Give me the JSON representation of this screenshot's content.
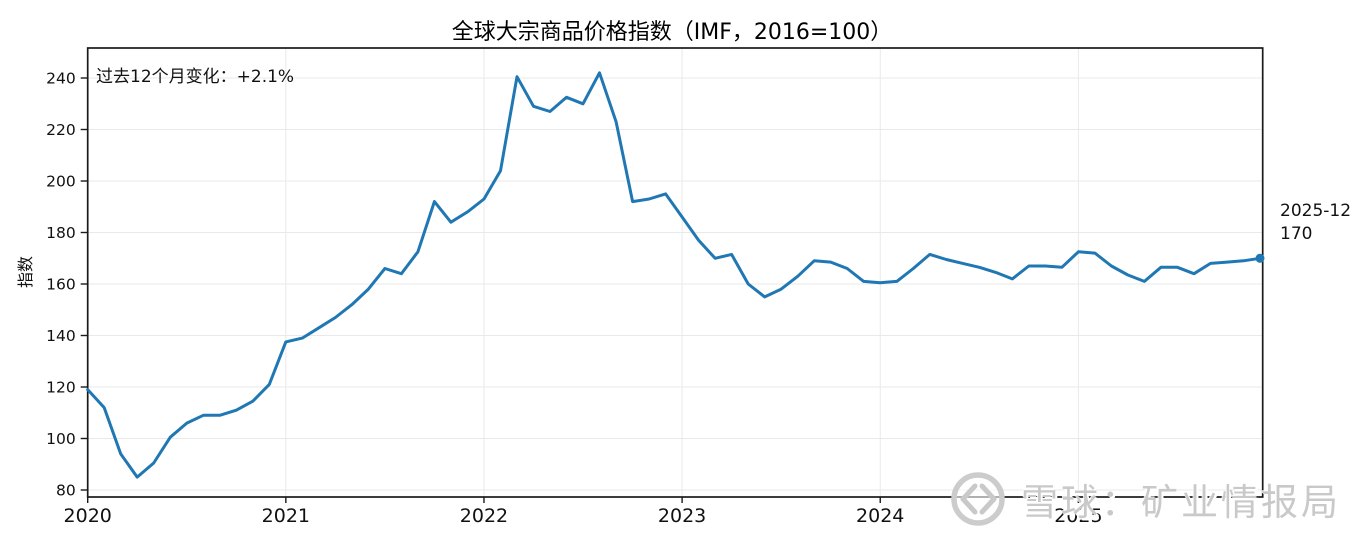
{
  "title": "全球大宗商品价格指数（IMF，2016=100）",
  "annotation": "过去12个月变化：+2.1%",
  "end_label": {
    "date": "2025-12",
    "value": "170"
  },
  "watermark": {
    "text": "雪球：矿业情报局",
    "logo": "xueqiu-circle-logo",
    "color": "#c9c9c9"
  },
  "chart_data": {
    "type": "line",
    "title": "全球大宗商品价格指数（IMF，2016=100）",
    "xlabel": "",
    "ylabel": "指数",
    "x_tick_labels": [
      "2020",
      "2021",
      "2022",
      "2023",
      "2024",
      "2025"
    ],
    "y_ticks": [
      80,
      100,
      120,
      140,
      160,
      180,
      200,
      220,
      240
    ],
    "ylim": [
      77,
      252
    ],
    "grid": true,
    "legend": "none",
    "line_color": "#1f77b4",
    "x_monthly_start": "2020-01",
    "x_monthly_end": "2025-12",
    "series": [
      {
        "name": "全球大宗商品价格指数",
        "values": [
          119,
          112,
          94,
          85,
          90.5,
          100.5,
          106,
          109,
          109,
          111,
          114.5,
          121,
          137.5,
          139,
          143,
          147,
          152,
          158,
          166,
          164,
          172.5,
          192,
          184,
          188,
          193,
          204,
          240.5,
          229,
          227,
          232.5,
          230,
          242,
          223,
          192,
          193,
          195,
          186,
          177,
          170,
          171.5,
          160,
          155,
          158,
          163,
          169,
          168.5,
          166,
          161,
          160.5,
          161,
          166,
          171.5,
          169.5,
          168,
          166.5,
          164.5,
          162,
          167,
          167,
          166.5,
          172.5,
          172,
          167,
          163.5,
          161,
          166.5,
          166.5,
          164,
          168,
          168.5,
          169,
          170
        ]
      }
    ],
    "last_point": {
      "x": "2025-12",
      "value": 170,
      "marker": "dot"
    },
    "annotations": [
      {
        "text": "过去12个月变化：+2.1%",
        "position": "top-left-inside"
      },
      {
        "text": "2025-12 170",
        "position": "right-of-last-point"
      }
    ]
  }
}
